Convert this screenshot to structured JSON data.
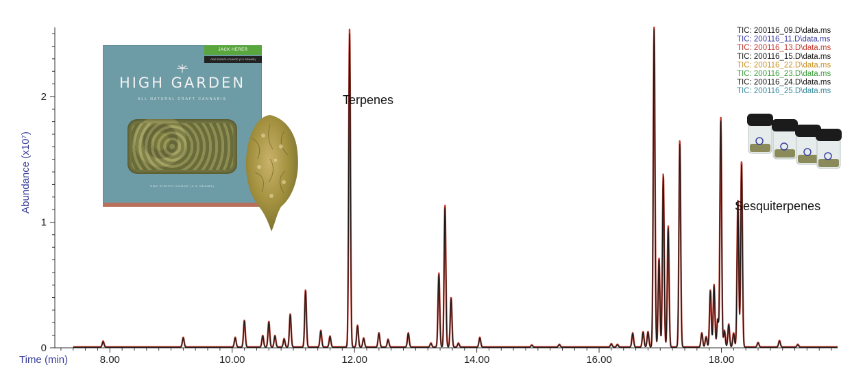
{
  "chart_data": {
    "type": "line",
    "title": "",
    "xlabel": "Time (min)",
    "ylabel": "Abundance (x10⁷)",
    "xlim": [
      7.1,
      19.9
    ],
    "ylim": [
      0,
      2.55
    ],
    "x_ticks": [
      "8.00",
      "10.00",
      "12.00",
      "14.00",
      "16.00",
      "18.00"
    ],
    "x_tick_values": [
      8,
      10,
      12,
      14,
      16,
      18
    ],
    "y_ticks": [
      "0",
      "1",
      "2"
    ],
    "y_tick_values": [
      0,
      1,
      2
    ],
    "grid": false,
    "legend_position": "top-right",
    "legend": [
      {
        "label": "TIC: 200116_09.D\\data.ms",
        "color": "#1a1a1a"
      },
      {
        "label": "TIC: 200116_11.D\\data.ms",
        "color": "#3d3fa0"
      },
      {
        "label": "TIC: 200116_13.D\\data.ms",
        "color": "#c0392b"
      },
      {
        "label": "TIC: 200116_15.D\\data.ms",
        "color": "#1a1a1a"
      },
      {
        "label": "TIC: 200116_22.D\\data.ms",
        "color": "#c8942a"
      },
      {
        "label": "TIC: 200116_23.D\\data.ms",
        "color": "#3a9a3a"
      },
      {
        "label": "TIC: 200116_24.D\\data.ms",
        "color": "#1a1a1a"
      },
      {
        "label": "TIC: 200116_25.D\\data.ms",
        "color": "#3a8aa0"
      }
    ],
    "annotations": [
      {
        "text": "Terpenes",
        "x": 12.1,
        "y": 1.95
      },
      {
        "text": "Sesquiterpenes",
        "x": 18.35,
        "y": 1.11
      }
    ],
    "peaks": [
      {
        "x": 7.89,
        "y": 0.045
      },
      {
        "x": 9.2,
        "y": 0.075
      },
      {
        "x": 10.05,
        "y": 0.075
      },
      {
        "x": 10.2,
        "y": 0.21
      },
      {
        "x": 10.5,
        "y": 0.09
      },
      {
        "x": 10.6,
        "y": 0.2
      },
      {
        "x": 10.7,
        "y": 0.09
      },
      {
        "x": 10.85,
        "y": 0.065
      },
      {
        "x": 10.95,
        "y": 0.26
      },
      {
        "x": 11.2,
        "y": 0.45
      },
      {
        "x": 11.45,
        "y": 0.13
      },
      {
        "x": 11.6,
        "y": 0.085
      },
      {
        "x": 11.92,
        "y": 2.5
      },
      {
        "x": 12.05,
        "y": 0.17
      },
      {
        "x": 12.15,
        "y": 0.07
      },
      {
        "x": 12.4,
        "y": 0.11
      },
      {
        "x": 12.55,
        "y": 0.06
      },
      {
        "x": 12.88,
        "y": 0.11
      },
      {
        "x": 13.25,
        "y": 0.03
      },
      {
        "x": 13.38,
        "y": 0.58
      },
      {
        "x": 13.48,
        "y": 1.12
      },
      {
        "x": 13.58,
        "y": 0.39
      },
      {
        "x": 13.7,
        "y": 0.03
      },
      {
        "x": 14.05,
        "y": 0.075
      },
      {
        "x": 14.9,
        "y": 0.015
      },
      {
        "x": 15.35,
        "y": 0.02
      },
      {
        "x": 16.2,
        "y": 0.025
      },
      {
        "x": 16.3,
        "y": 0.02
      },
      {
        "x": 16.55,
        "y": 0.11
      },
      {
        "x": 16.72,
        "y": 0.12
      },
      {
        "x": 16.8,
        "y": 0.12
      },
      {
        "x": 16.9,
        "y": 2.53
      },
      {
        "x": 16.98,
        "y": 0.7
      },
      {
        "x": 17.05,
        "y": 1.36
      },
      {
        "x": 17.13,
        "y": 0.95
      },
      {
        "x": 17.32,
        "y": 1.63
      },
      {
        "x": 17.68,
        "y": 0.11
      },
      {
        "x": 17.75,
        "y": 0.08
      },
      {
        "x": 17.82,
        "y": 0.45
      },
      {
        "x": 17.88,
        "y": 0.49
      },
      {
        "x": 17.94,
        "y": 0.22
      },
      {
        "x": 17.99,
        "y": 1.81
      },
      {
        "x": 18.05,
        "y": 0.13
      },
      {
        "x": 18.12,
        "y": 0.18
      },
      {
        "x": 18.2,
        "y": 0.11
      },
      {
        "x": 18.27,
        "y": 1.15
      },
      {
        "x": 18.33,
        "y": 1.47
      },
      {
        "x": 18.6,
        "y": 0.035
      },
      {
        "x": 18.95,
        "y": 0.05
      },
      {
        "x": 19.25,
        "y": 0.02
      }
    ]
  },
  "images": {
    "package": {
      "label_tag": "JACK HERER",
      "label_sub": "ONE EIGHTH OUNCE (3.5 GRAMS)",
      "brand": "HIGH GARDEN",
      "tagline": "ALL NATURAL CRAFT CANNABIS",
      "footer": "ONE EIGHTH OUNCE (3.5 GRAMS)"
    }
  },
  "colors": {
    "trace_black": "#1a1a1a",
    "trace_red": "#c0392b",
    "axis": "#333333",
    "axis_label": "#3a3f9a"
  }
}
